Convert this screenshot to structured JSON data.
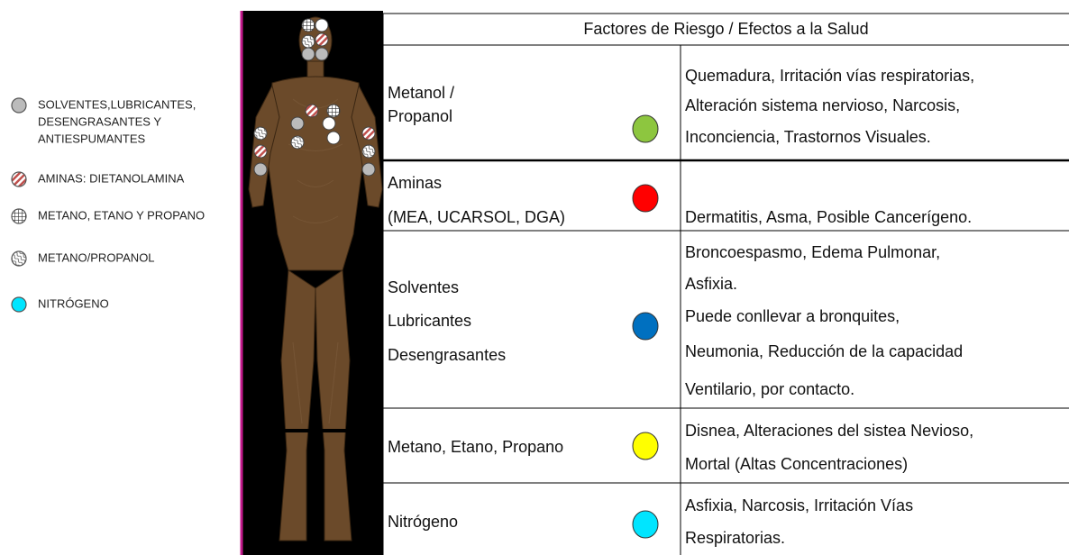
{
  "legend": [
    {
      "label_lines": [
        "SOLVENTES,LUBRICANTES,",
        "DESENGRASANTES Y",
        "ANTIESPUMANTES"
      ]
    },
    {
      "label_lines": [
        "AMINAS: DIETANOLAMINA"
      ]
    },
    {
      "label_lines": [
        "METANO, ETANO Y PROPANO"
      ]
    },
    {
      "label_lines": [
        "METANO/PROPANOL"
      ]
    },
    {
      "label_lines": [
        "NITRÓGENO"
      ]
    }
  ],
  "table": {
    "header": "Factores de Riesgo / Efectos a la Salud",
    "rows": [
      {
        "name_lines": [
          "Metanol /",
          "Propanol"
        ],
        "color": "#8dc63f",
        "effects_lines": [
          "Quemadura, Irritación vías respiratorias,",
          "Alteración sistema nervioso, Narcosis,",
          "Inconciencia, Trastornos Visuales."
        ]
      },
      {
        "name_lines": [
          "Aminas",
          "(MEA, UCARSOL, DGA)"
        ],
        "color": "#ff0000",
        "effects_lines": [
          "Dermatitis, Asma, Posible Cancerígeno."
        ]
      },
      {
        "name_lines": [
          "Solventes",
          "Lubricantes",
          "Desengrasantes"
        ],
        "color": "#0070c0",
        "effects_lines": [
          "Broncoespasmo, Edema Pulmonar,",
          "Asfixia.",
          "Puede conllevar a bronquites,",
          "Neumonia, Reducción de la capacidad",
          "Ventilario, por contacto."
        ]
      },
      {
        "name_lines": [
          "Metano, Etano, Propano"
        ],
        "color": "#ffff00",
        "effects_lines": [
          "Disnea, Alteraciones del sistea Nevioso,",
          "Mortal (Altas Concentraciones)"
        ]
      },
      {
        "name_lines": [
          "Nitrógeno"
        ],
        "color": "#00e5ff",
        "effects_lines": [
          "Asfixia, Narcosis, Irritación Vías",
          "Respiratorias."
        ]
      }
    ]
  }
}
